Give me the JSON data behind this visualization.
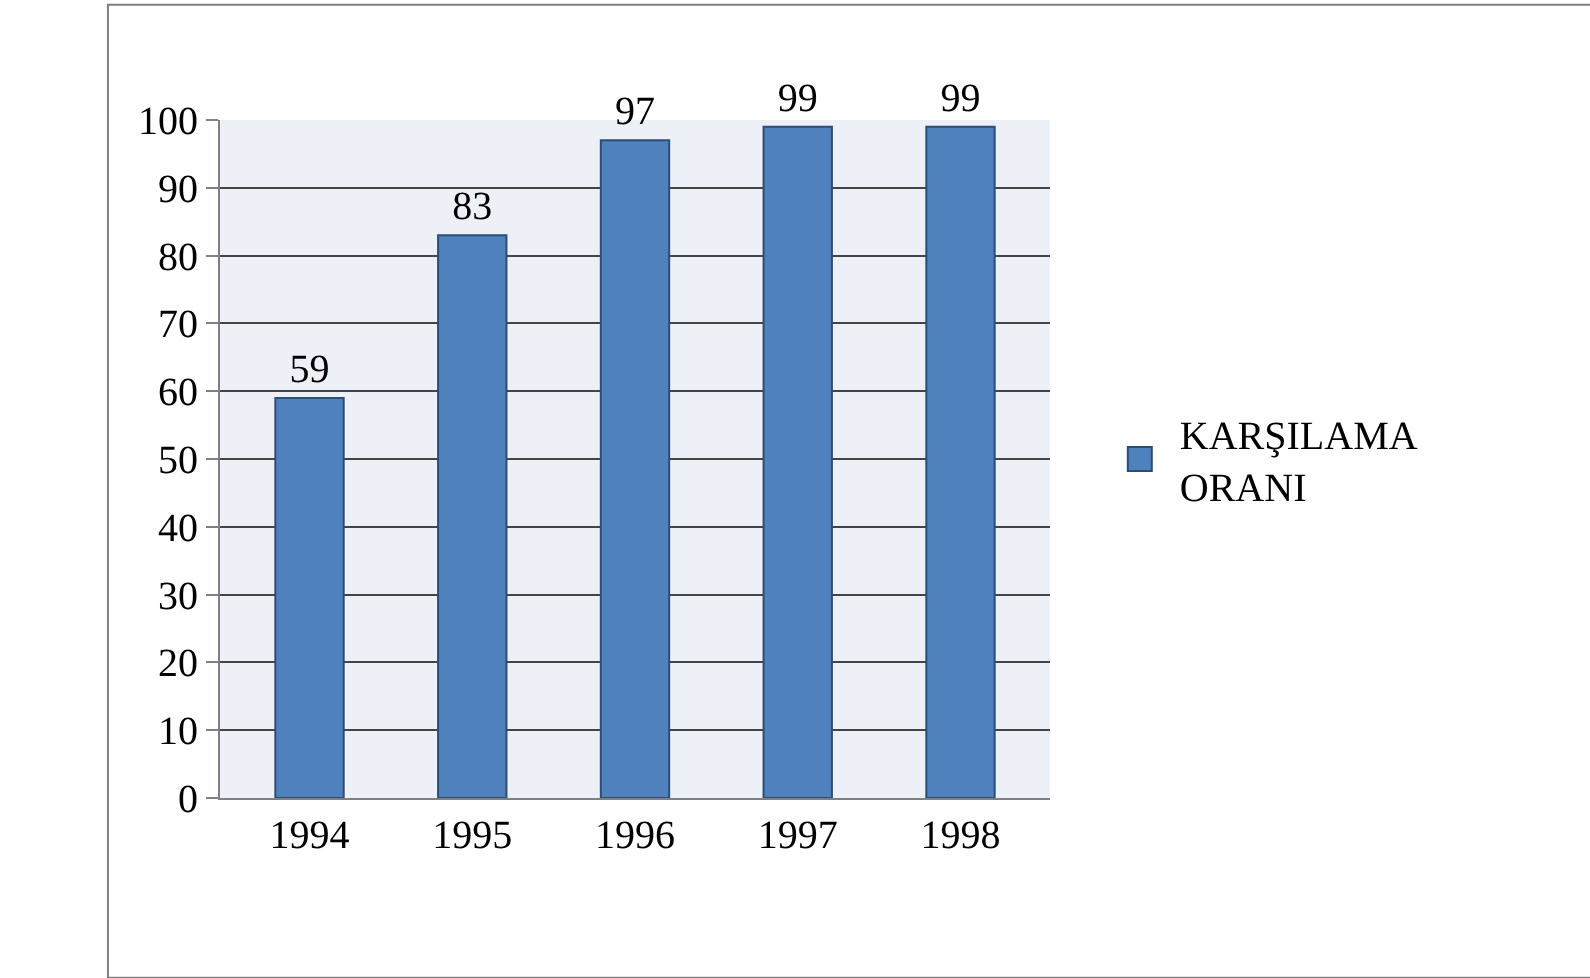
{
  "chart_data": {
    "type": "bar",
    "categories": [
      "1994",
      "1995",
      "1996",
      "1997",
      "1998"
    ],
    "series": [
      {
        "name": "KARŞILAMA ORANI",
        "color": "#4f81bd",
        "values": [
          59,
          83,
          97,
          99,
          99
        ]
      }
    ],
    "ylim": [
      0,
      100
    ],
    "yticks": [
      0,
      10,
      20,
      30,
      40,
      50,
      60,
      70,
      80,
      90,
      100
    ],
    "grid": "y",
    "legend": "right",
    "data_labels": true
  }
}
